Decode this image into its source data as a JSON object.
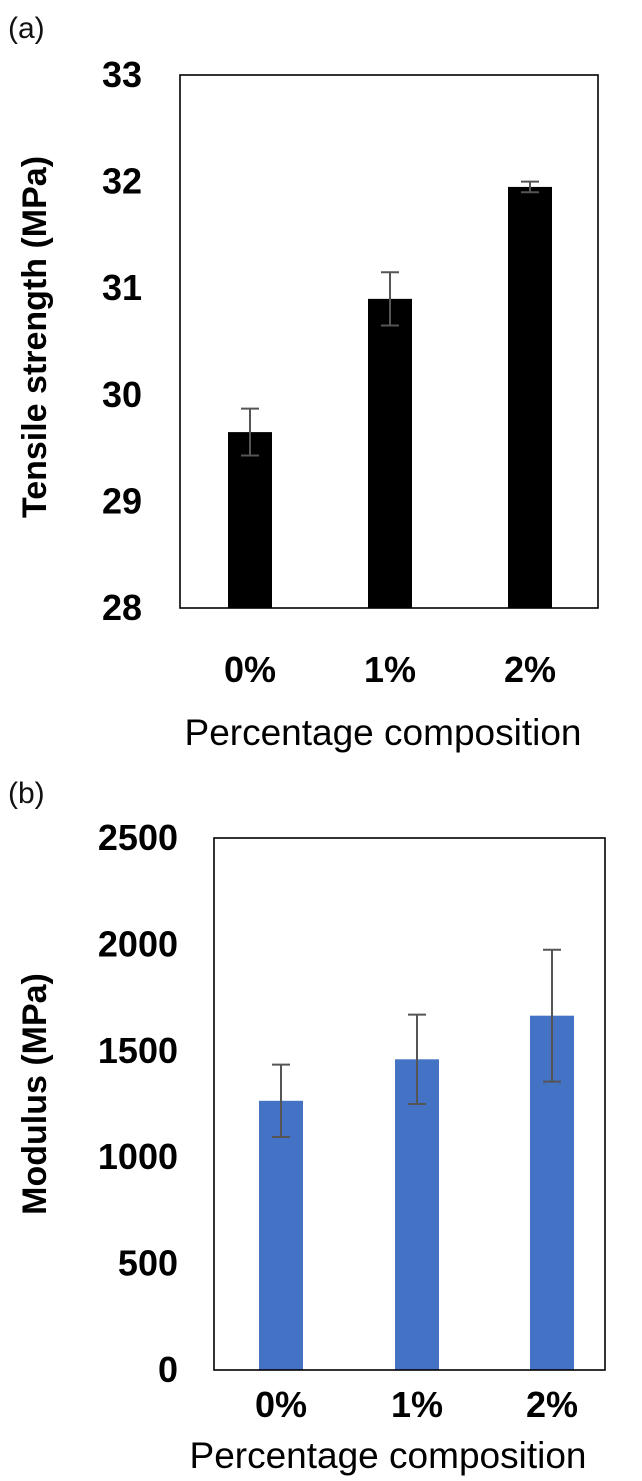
{
  "chart_data": [
    {
      "type": "bar",
      "panel_label": "(a)",
      "title": "",
      "xlabel": "Percentage composition",
      "ylabel": "Tensile strength (MPa)",
      "categories": [
        "0%",
        "1%",
        "2%"
      ],
      "values": [
        29.65,
        30.9,
        31.95
      ],
      "errors": [
        0.22,
        0.25,
        0.05
      ],
      "ylim": [
        28,
        33
      ],
      "yticks": [
        28,
        29,
        30,
        31,
        32,
        33
      ],
      "ytick_labels": [
        "28",
        "29",
        "30",
        "31",
        "32",
        "33"
      ],
      "bar_color": "#000000",
      "grid": false,
      "legend": "none"
    },
    {
      "type": "bar",
      "panel_label": "(b)",
      "title": "",
      "xlabel": "Percentage composition",
      "ylabel": "Modulus (MPa)",
      "categories": [
        "0%",
        "1%",
        "2%"
      ],
      "values": [
        1265,
        1460,
        1665
      ],
      "errors": [
        170,
        210,
        310
      ],
      "ylim": [
        0,
        2500
      ],
      "yticks": [
        0,
        500,
        1000,
        1500,
        2000,
        2500
      ],
      "ytick_labels": [
        "0",
        "500",
        "1000",
        "1500",
        "2000",
        "2500"
      ],
      "bar_color": "#4472C4",
      "grid": false,
      "legend": "none"
    }
  ]
}
